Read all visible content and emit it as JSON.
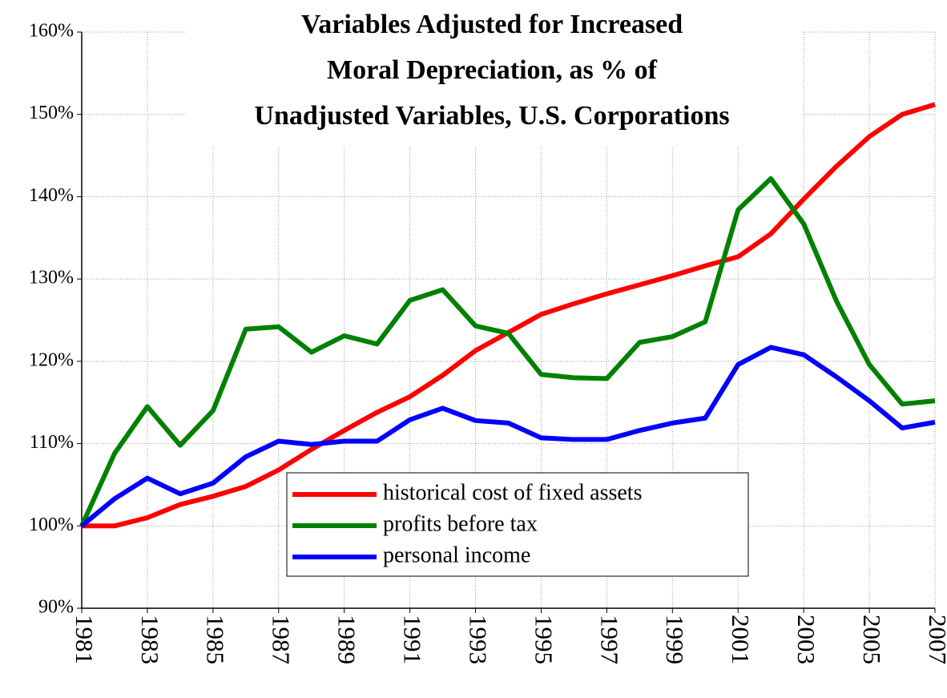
{
  "chart_data": {
    "type": "line",
    "title": [
      "Variables Adjusted for Increased",
      "Moral Depreciation, as % of",
      "Unadjusted  Variables, U.S. Corporations"
    ],
    "x": [
      1981,
      1982,
      1983,
      1984,
      1985,
      1986,
      1987,
      1988,
      1989,
      1990,
      1991,
      1992,
      1993,
      1994,
      1995,
      1996,
      1997,
      1998,
      1999,
      2000,
      2001,
      2002,
      2003,
      2004,
      2005,
      2006,
      2007
    ],
    "xlim": [
      1981,
      2007
    ],
    "xticks": [
      1981,
      1983,
      1985,
      1987,
      1989,
      1991,
      1993,
      1995,
      1997,
      1999,
      2001,
      2003,
      2005,
      2007
    ],
    "ylim": [
      90,
      160
    ],
    "yticks": [
      {
        "value": 90,
        "label": "90%"
      },
      {
        "value": 100,
        "label": "100%"
      },
      {
        "value": 110,
        "label": "110%"
      },
      {
        "value": 120,
        "label": "120%"
      },
      {
        "value": 130,
        "label": "130%"
      },
      {
        "value": 140,
        "label": "140%"
      },
      {
        "value": 150,
        "label": "150%"
      },
      {
        "value": 160,
        "label": "160%"
      }
    ],
    "grid": true,
    "legend": "bottom-center",
    "series": [
      {
        "name": "historical cost of fixed assets",
        "color": "#ff0000",
        "values": [
          100,
          100,
          101,
          102.6,
          103.6,
          104.8,
          106.8,
          109.3,
          111.6,
          113.8,
          115.7,
          118.3,
          121.3,
          123.5,
          125.7,
          127,
          128.2,
          129.3,
          130.4,
          131.6,
          132.7,
          135.5,
          139.7,
          143.7,
          147.3,
          150,
          151.2
        ]
      },
      {
        "name": "profits before tax",
        "color": "#008000",
        "values": [
          100,
          108.8,
          114.5,
          109.8,
          114,
          123.9,
          124.2,
          121.1,
          123.1,
          122.1,
          127.4,
          128.7,
          124.3,
          123.4,
          118.4,
          118,
          117.9,
          122.3,
          123,
          124.8,
          138.4,
          142.2,
          136.7,
          127.3,
          119.6,
          114.8,
          115.2
        ]
      },
      {
        "name": "personal income",
        "color": "#0000ff",
        "values": [
          100,
          103.3,
          105.8,
          103.9,
          105.2,
          108.4,
          110.3,
          109.9,
          110.3,
          110.3,
          112.9,
          114.3,
          112.8,
          112.5,
          110.7,
          110.5,
          110.5,
          111.6,
          112.5,
          113.1,
          119.6,
          121.7,
          120.8,
          118.1,
          115.2,
          111.9,
          112.6
        ]
      }
    ]
  }
}
